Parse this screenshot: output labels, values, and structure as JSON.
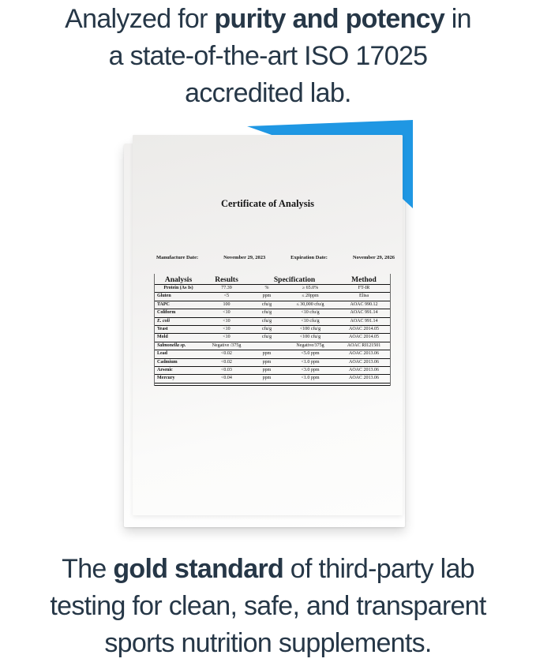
{
  "colors": {
    "headline_text": "#263747",
    "accent_blue": "#1f97e3",
    "paper": "#f2f1f0",
    "background": "#ffffff"
  },
  "headline_top": {
    "lines": [
      {
        "pre": "Analyzed for ",
        "bold": "purity and potency",
        "post": " in"
      },
      {
        "pre": "a state-of-the-art ISO 17025"
      },
      {
        "pre": "accredited lab."
      }
    ]
  },
  "headline_bottom": {
    "lines": [
      {
        "pre": "The ",
        "bold": "gold standard",
        "post": " of third-party lab"
      },
      {
        "pre": "testing for clean, safe, and transparent"
      },
      {
        "pre": "sports nutrition supplements."
      }
    ]
  },
  "document": {
    "title": "Certificate of Analysis",
    "manufacture_date_label": "Manufacture Date:",
    "manufacture_date": "November 29, 2023",
    "expiration_date_label": "Expiration Date:",
    "expiration_date": "November 29, 2026",
    "table": {
      "headers": [
        "Analysis",
        "Results",
        "Specification",
        "Method"
      ],
      "rows": [
        {
          "analysis": "Protein (As Is)",
          "result": "77.39",
          "unit": "%",
          "spec": "≥ 65.0%",
          "method": "FT-IR",
          "center": true
        },
        {
          "analysis": "Gluten",
          "result": "<5",
          "unit": "ppm",
          "spec": "≤ 20ppm",
          "method": "Elisa"
        },
        {
          "analysis": "TAPC",
          "result": "100",
          "unit": "cfu/g",
          "spec": "≤ 30,000 cfu/g",
          "method": "AOAC 990.12"
        },
        {
          "analysis": "Coliform",
          "result": "<10",
          "unit": "cfu/g",
          "spec": "<10 cfu/g",
          "method": "AOAC 991.14"
        },
        {
          "analysis": "E. coli",
          "result": "<10",
          "unit": "cfu/g",
          "spec": "<10 cfu/g",
          "method": "AOAC 991.14",
          "italic": true
        },
        {
          "analysis": "Yeast",
          "result": "<10",
          "unit": "cfu/g",
          "spec": "<100 cfu/g",
          "method": "AOAC 2014.05"
        },
        {
          "analysis": "Mold",
          "result": "<10",
          "unit": "cfu/g",
          "spec": "<100 cfu/g",
          "method": "AOAC 2014.05"
        },
        {
          "analysis": "Salmonella sp.",
          "result": "Negative /375g",
          "unit": "",
          "spec": "Negative/375g",
          "method": "AOAC RI121501",
          "italic": true
        },
        {
          "analysis": "Lead",
          "result": "<0.02",
          "unit": "ppm",
          "spec": "<5.0 ppm",
          "method": "AOAC 2013.06"
        },
        {
          "analysis": "Cadmium",
          "result": "<0.02",
          "unit": "ppm",
          "spec": "<1.0 ppm",
          "method": "AOAC 2013.06"
        },
        {
          "analysis": "Arsenic",
          "result": "<0.03",
          "unit": "ppm",
          "spec": "<3.0 ppm",
          "method": "AOAC 2013.06"
        },
        {
          "analysis": "Mercury",
          "result": "<0.04",
          "unit": "ppm",
          "spec": "<1.0 ppm",
          "method": "AOAC 2013.06"
        }
      ]
    }
  }
}
